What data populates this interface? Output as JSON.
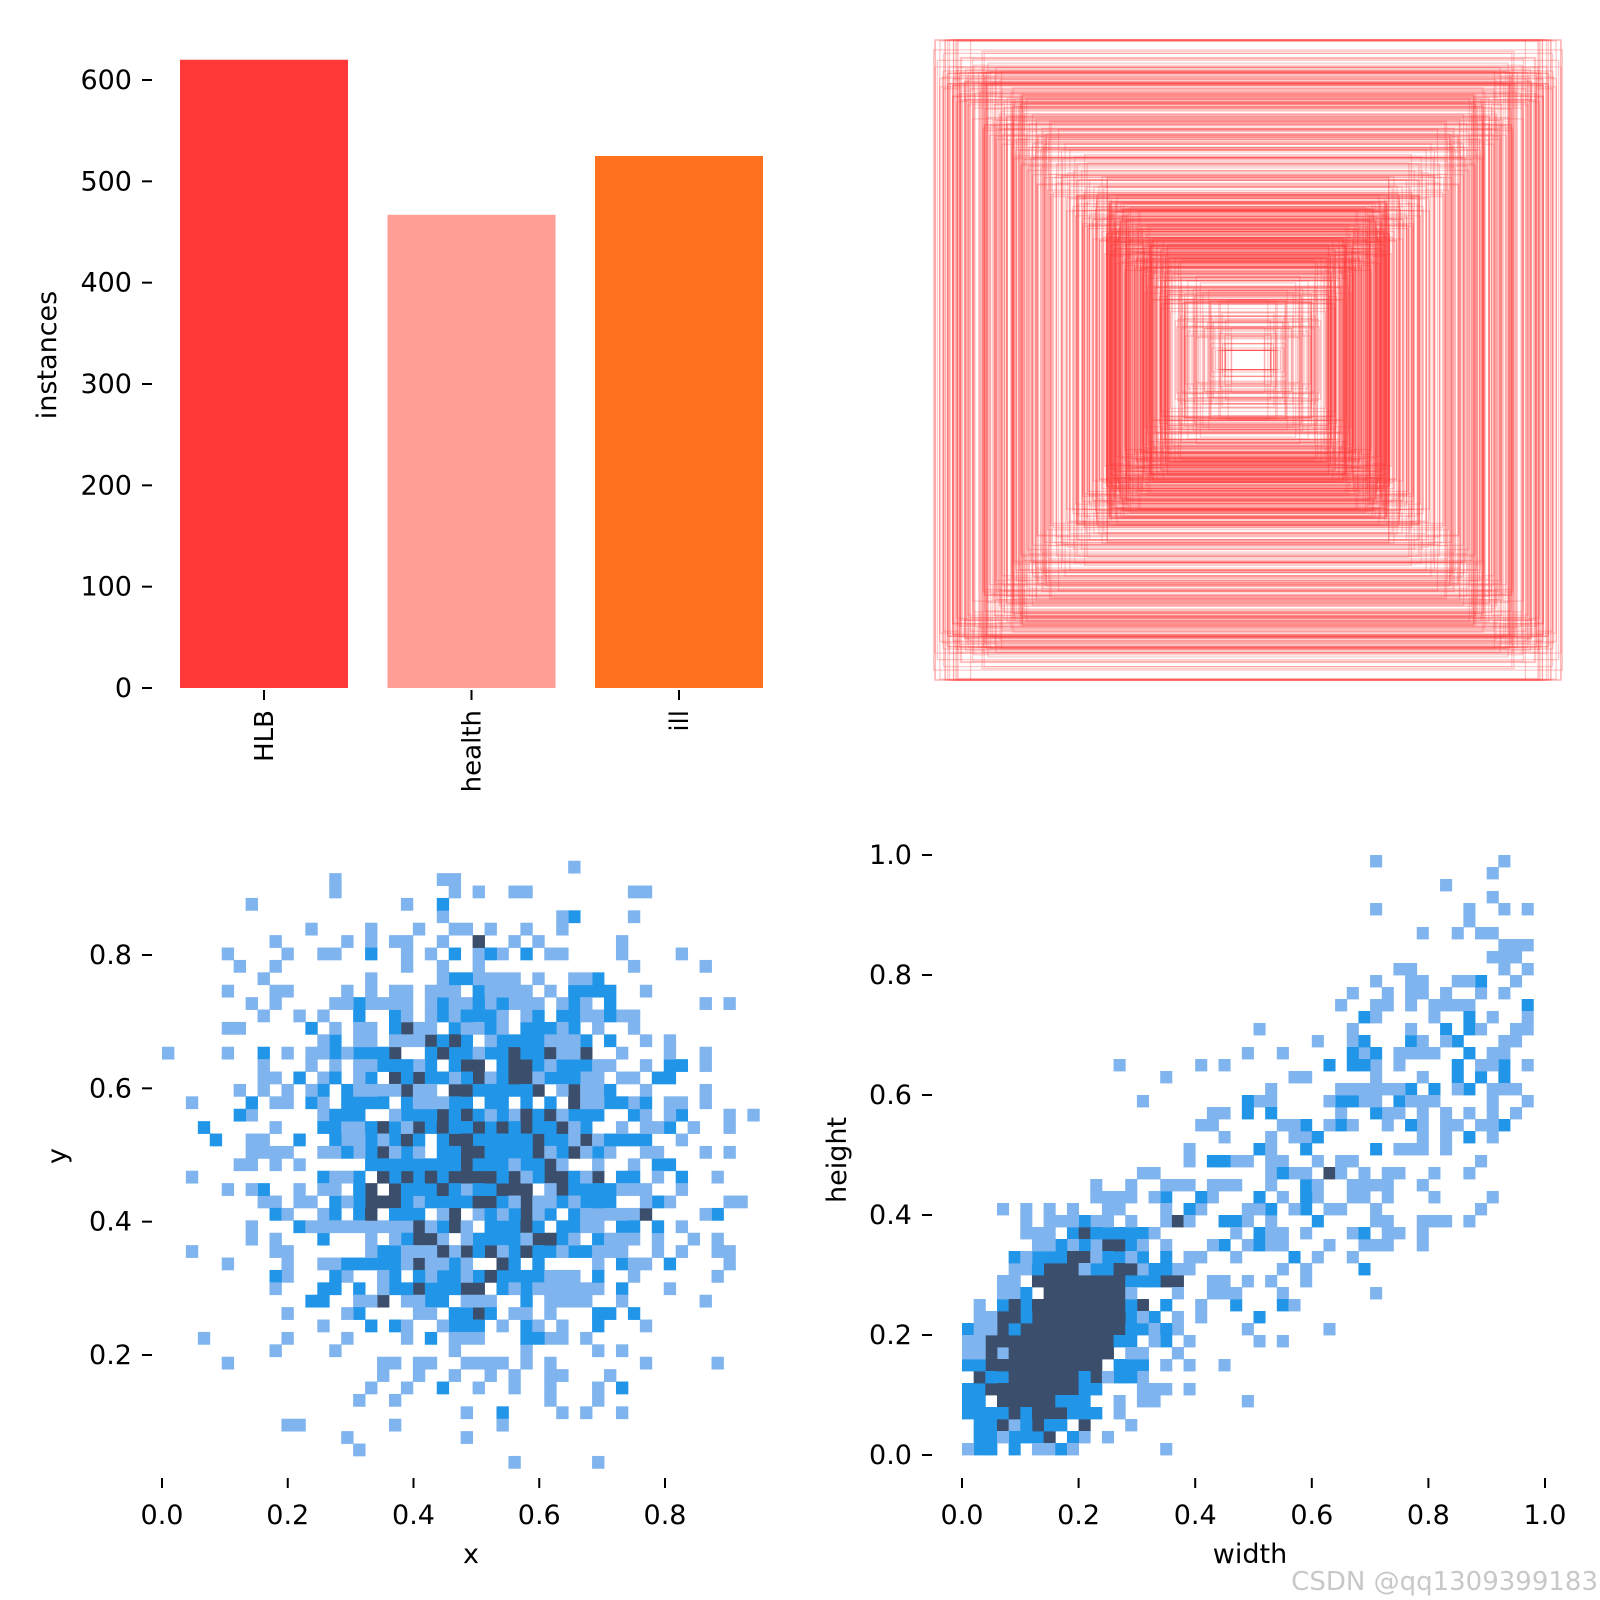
{
  "colors": {
    "bar_HLB": "#ff3838",
    "bar_health": "#ff9d97",
    "bar_ill": "#ff701f",
    "box_stroke": "#ff3838",
    "hist_light": "#7fb4ee",
    "hist_mid": "#2196e8",
    "hist_dark": "#3b4e6c",
    "axis": "#000000"
  },
  "watermark": "CSDN @qq1309399183",
  "chart_data": [
    {
      "type": "bar",
      "title": "",
      "categories": [
        "HLB",
        "health",
        "ill"
      ],
      "values": [
        620,
        467,
        525
      ],
      "ylabel": "instances",
      "xlabel": "",
      "ylim": [
        0,
        640
      ],
      "yticks": [
        0,
        100,
        200,
        300,
        400,
        500,
        600
      ],
      "ytick_labels": [
        "0",
        "100",
        "200",
        "300",
        "400",
        "500",
        "600"
      ]
    },
    {
      "type": "scatter",
      "subtype": "box_overlay",
      "title": "",
      "description_values": {
        "center": [
          0.5,
          0.5
        ],
        "box_count_estimate": 600,
        "width_range": [
          0.05,
          1.0
        ],
        "height_range": [
          0.02,
          1.0
        ]
      },
      "xlabel": "",
      "ylabel": ""
    },
    {
      "type": "heatmap",
      "title": "",
      "xlabel": "x",
      "ylabel": "y",
      "xlim": [
        0.0,
        0.95
      ],
      "ylim": [
        0.03,
        0.96
      ],
      "xticks": [
        0.0,
        0.2,
        0.4,
        0.6,
        0.8
      ],
      "xtick_labels": [
        "0.0",
        "0.2",
        "0.4",
        "0.6",
        "0.8"
      ],
      "yticks": [
        0.2,
        0.4,
        0.6,
        0.8
      ],
      "ytick_labels": [
        "0.2",
        "0.4",
        "0.6",
        "0.8"
      ],
      "distribution": {
        "mean_x": 0.5,
        "mean_y": 0.5,
        "sd_x": 0.17,
        "sd_y": 0.17,
        "samples": 1612
      },
      "bins": 50
    },
    {
      "type": "heatmap",
      "title": "",
      "xlabel": "width",
      "ylabel": "height",
      "xlim": [
        0.0,
        1.0
      ],
      "ylim": [
        0.0,
        1.0
      ],
      "xticks": [
        0.0,
        0.2,
        0.4,
        0.6,
        0.8,
        1.0
      ],
      "xtick_labels": [
        "0.0",
        "0.2",
        "0.4",
        "0.6",
        "0.8",
        "1.0"
      ],
      "yticks": [
        0.0,
        0.2,
        0.4,
        0.6,
        0.8,
        1.0
      ],
      "ytick_labels": [
        "0.0",
        "0.2",
        "0.4",
        "0.6",
        "0.8",
        "1.0"
      ],
      "distribution": {
        "dense_center": [
          0.15,
          0.18
        ],
        "correlated": true,
        "samples": 1612
      },
      "bins": 50
    }
  ]
}
